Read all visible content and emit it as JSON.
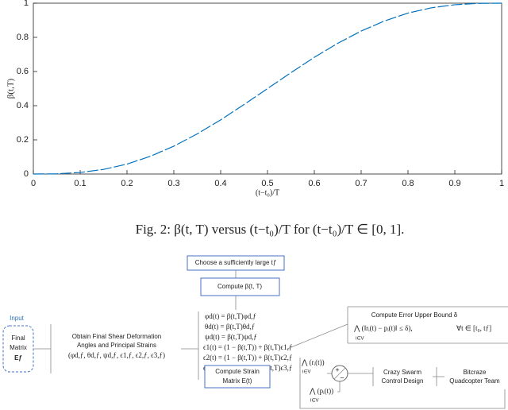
{
  "chart_data": {
    "type": "line",
    "x_label": "(t−t₀)/T",
    "y_label": "β(t,T)",
    "x": [
      0,
      0.05,
      0.1,
      0.15,
      0.2,
      0.25,
      0.3,
      0.35,
      0.4,
      0.45,
      0.5,
      0.55,
      0.6,
      0.65,
      0.7,
      0.75,
      0.8,
      0.85,
      0.9,
      0.95,
      1
    ],
    "series": [
      {
        "color": "#0072bd",
        "values": [
          0,
          0.001,
          0.009,
          0.027,
          0.058,
          0.104,
          0.163,
          0.235,
          0.317,
          0.407,
          0.5,
          0.593,
          0.683,
          0.765,
          0.837,
          0.896,
          0.942,
          0.973,
          0.991,
          0.999,
          1
        ]
      }
    ],
    "xlim": [
      0,
      1
    ],
    "ylim": [
      0,
      1
    ],
    "xticks": [
      0,
      0.1,
      0.2,
      0.3,
      0.4,
      0.5,
      0.6,
      0.7,
      0.8,
      0.9,
      1
    ],
    "yticks": [
      0,
      0.2,
      0.4,
      0.6,
      0.8,
      1
    ]
  },
  "caption": "Fig. 2: β(t, T) versus (t−t₀)/T for (t−t₀)/T ∈ [0, 1].",
  "diagram": {
    "choose": "Choose a sufficiently large tƒ",
    "compute_beta": "Compute β(t, T)",
    "input_title": "Input",
    "input": [
      "Final",
      "Matrix",
      "Eƒ"
    ],
    "obtain": [
      "Obtain Final Shear Deformation",
      "Angles and Principal Strains",
      "(φd,ƒ, θd,ƒ, ψd,ƒ, ϵ1,ƒ, ϵ2,ƒ, ϵ3,ƒ)"
    ],
    "equations": [
      "φd(t) = β(t,T)φd,ƒ",
      "θd(t) = β(t,T)θd,ƒ",
      "ψd(t) = β(t,T)ψd,ƒ",
      "ϵ1(t) = (1 − β(t,T)) + β(t,T)ϵ1,ƒ",
      "ϵ2(t) = (1 − β(t,T)) + β(t,T)ϵ2,ƒ",
      "ϵ3(t) = (1 − β(t,T)) + β(t,T)ϵ3,ƒ"
    ],
    "compute_strain": [
      "Compute Strain",
      "Matrix E(t)"
    ],
    "error_title": "Compute Error Upper Bound δ",
    "error_formula": "⋀ (‖rᵢ(t) − pᵢ(t)‖ ≤ δ),",
    "error_range": "∀t ∈ [t₀, tƒ]",
    "set_label": "i∈V",
    "r_input": "⋀ (rᵢ(t))",
    "p_input": "⋀ (pᵢ(t))",
    "junction_signs": [
      "+",
      "−"
    ],
    "swarm": [
      "Crazy Swarm",
      "Control Design"
    ],
    "bitcraze": [
      "Bitcraze",
      "Quadcopter Team"
    ]
  }
}
